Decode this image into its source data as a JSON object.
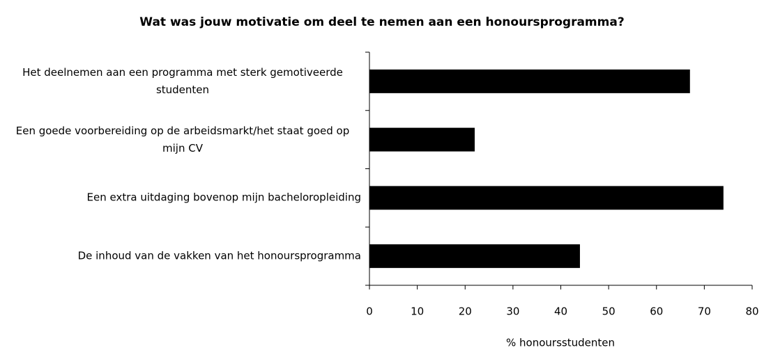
{
  "chart_data": {
    "type": "bar",
    "orientation": "horizontal",
    "title": "Wat was jouw motivatie om deel te nemen aan een honoursprogramma?",
    "categories": [
      "Het deelnemen aan een programma met sterk gemotiveerde studenten",
      "Een goede voorbereiding op de arbeidsmarkt/het staat goed op mijn CV",
      "Een extra uitdaging bovenop mijn bacheloropleiding",
      "De inhoud van de vakken van het honoursprogramma"
    ],
    "values": [
      67,
      22,
      74,
      44
    ],
    "color": "#000000",
    "xlabel": "% honoursstudenten",
    "xlim": [
      0,
      80
    ],
    "xticks": [
      0,
      10,
      20,
      30,
      40,
      50,
      60,
      70,
      80
    ],
    "grid": false
  }
}
